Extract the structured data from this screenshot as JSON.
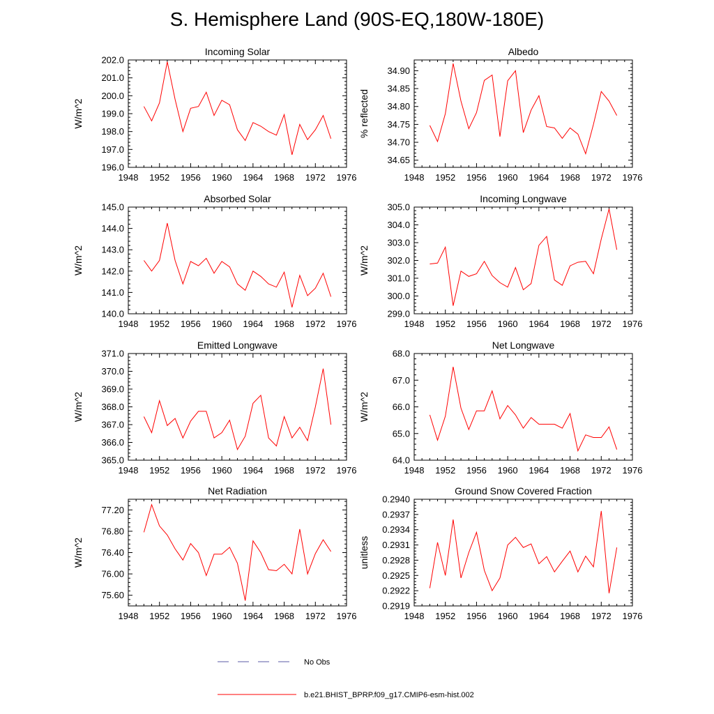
{
  "title": "S. Hemisphere Land (90S-EQ,180W-180E)",
  "legend": {
    "obs_label": "No Obs",
    "obs_color": "#5a5aa6",
    "model_label": "b.e21.BHIST_BPRP.f09_g17.CMIP6-esm-hist.002",
    "model_color": "#ff0000"
  },
  "chart_data": [
    {
      "type": "line",
      "title": "Incoming Solar",
      "ylabel": "W/m^2",
      "xlim": [
        1948,
        1976
      ],
      "xticks": [
        1948,
        1952,
        1956,
        1960,
        1964,
        1968,
        1972,
        1976
      ],
      "ylim": [
        196.0,
        202.0
      ],
      "yticks": [
        196.0,
        197.0,
        198.0,
        199.0,
        200.0,
        201.0,
        202.0
      ],
      "ytick_labels": [
        "196.0",
        "197.0",
        "198.0",
        "199.0",
        "200.0",
        "201.0",
        "202.0"
      ],
      "x": [
        1950,
        1951,
        1952,
        1953,
        1954,
        1955,
        1956,
        1957,
        1958,
        1959,
        1960,
        1961,
        1962,
        1963,
        1964,
        1965,
        1966,
        1967,
        1968,
        1969,
        1970,
        1971,
        1972,
        1973,
        1974
      ],
      "values": [
        199.4,
        198.6,
        199.6,
        201.9,
        199.8,
        198.0,
        199.3,
        199.4,
        200.2,
        198.9,
        199.75,
        199.5,
        198.1,
        197.5,
        198.5,
        198.3,
        198.0,
        197.8,
        198.95,
        196.7,
        198.4,
        197.55,
        198.1,
        198.9,
        197.6
      ]
    },
    {
      "type": "line",
      "title": "Albedo",
      "ylabel": "% reflected",
      "xlim": [
        1948,
        1976
      ],
      "xticks": [
        1948,
        1952,
        1956,
        1960,
        1964,
        1968,
        1972,
        1976
      ],
      "ylim": [
        34.63,
        34.93
      ],
      "yticks": [
        34.65,
        34.7,
        34.75,
        34.8,
        34.85,
        34.9
      ],
      "ytick_labels": [
        "34.65",
        "34.70",
        "34.75",
        "34.80",
        "34.85",
        "34.90"
      ],
      "x": [
        1950,
        1951,
        1952,
        1953,
        1954,
        1955,
        1956,
        1957,
        1958,
        1959,
        1960,
        1961,
        1962,
        1963,
        1964,
        1965,
        1966,
        1967,
        1968,
        1969,
        1970,
        1971,
        1972,
        1973,
        1974
      ],
      "values": [
        34.747,
        34.702,
        34.78,
        34.92,
        34.815,
        34.738,
        34.783,
        34.873,
        34.888,
        34.716,
        34.872,
        34.9,
        34.727,
        34.79,
        34.83,
        34.744,
        34.74,
        34.711,
        34.74,
        34.723,
        34.668,
        34.75,
        34.842,
        34.815,
        34.775
      ]
    },
    {
      "type": "line",
      "title": "Absorbed Solar",
      "ylabel": "W/m^2",
      "xlim": [
        1948,
        1976
      ],
      "xticks": [
        1948,
        1952,
        1956,
        1960,
        1964,
        1968,
        1972,
        1976
      ],
      "ylim": [
        140.0,
        145.0
      ],
      "yticks": [
        140.0,
        141.0,
        142.0,
        143.0,
        144.0,
        145.0
      ],
      "ytick_labels": [
        "140.0",
        "141.0",
        "142.0",
        "143.0",
        "144.0",
        "145.0"
      ],
      "x": [
        1950,
        1951,
        1952,
        1953,
        1954,
        1955,
        1956,
        1957,
        1958,
        1959,
        1960,
        1961,
        1962,
        1963,
        1964,
        1965,
        1966,
        1967,
        1968,
        1969,
        1970,
        1971,
        1972,
        1973,
        1974
      ],
      "values": [
        142.5,
        142.0,
        142.5,
        144.25,
        142.5,
        141.4,
        142.45,
        142.25,
        142.6,
        141.9,
        142.45,
        142.2,
        141.4,
        141.1,
        142.0,
        141.75,
        141.4,
        141.25,
        141.95,
        140.3,
        141.8,
        140.85,
        141.2,
        141.9,
        140.8
      ]
    },
    {
      "type": "line",
      "title": "Incoming Longwave",
      "ylabel": "W/m^2",
      "xlim": [
        1948,
        1976
      ],
      "xticks": [
        1948,
        1952,
        1956,
        1960,
        1964,
        1968,
        1972,
        1976
      ],
      "ylim": [
        299.0,
        305.0
      ],
      "yticks": [
        299.0,
        300.0,
        301.0,
        302.0,
        303.0,
        304.0,
        305.0
      ],
      "ytick_labels": [
        "299.0",
        "300.0",
        "301.0",
        "302.0",
        "303.0",
        "304.0",
        "305.0"
      ],
      "x": [
        1950,
        1951,
        1952,
        1953,
        1954,
        1955,
        1956,
        1957,
        1958,
        1959,
        1960,
        1961,
        1962,
        1963,
        1964,
        1965,
        1966,
        1967,
        1968,
        1969,
        1970,
        1971,
        1972,
        1973,
        1974
      ],
      "values": [
        301.8,
        301.85,
        302.75,
        299.45,
        301.4,
        301.1,
        301.25,
        301.95,
        301.15,
        300.75,
        300.5,
        301.6,
        300.35,
        300.7,
        302.85,
        303.35,
        300.9,
        300.6,
        301.7,
        301.9,
        301.95,
        301.25,
        303.2,
        304.9,
        302.6
      ]
    },
    {
      "type": "line",
      "title": "Emitted Longwave",
      "ylabel": "W/m^2",
      "xlim": [
        1948,
        1976
      ],
      "xticks": [
        1948,
        1952,
        1956,
        1960,
        1964,
        1968,
        1972,
        1976
      ],
      "ylim": [
        365.0,
        371.0
      ],
      "yticks": [
        365.0,
        366.0,
        367.0,
        368.0,
        369.0,
        370.0,
        371.0
      ],
      "ytick_labels": [
        "365.0",
        "366.0",
        "367.0",
        "368.0",
        "369.0",
        "370.0",
        "371.0"
      ],
      "x": [
        1950,
        1951,
        1952,
        1953,
        1954,
        1955,
        1956,
        1957,
        1958,
        1959,
        1960,
        1961,
        1962,
        1963,
        1964,
        1965,
        1966,
        1967,
        1968,
        1969,
        1970,
        1971,
        1972,
        1973,
        1974
      ],
      "values": [
        367.45,
        366.55,
        368.35,
        366.95,
        367.35,
        366.25,
        367.2,
        367.75,
        367.75,
        366.25,
        366.55,
        367.25,
        365.6,
        366.35,
        368.2,
        368.65,
        366.25,
        365.8,
        367.45,
        366.25,
        366.85,
        366.1,
        368.0,
        370.15,
        367.0
      ]
    },
    {
      "type": "line",
      "title": "Net Longwave",
      "ylabel": "W/m^2",
      "xlim": [
        1948,
        1976
      ],
      "xticks": [
        1948,
        1952,
        1956,
        1960,
        1964,
        1968,
        1972,
        1976
      ],
      "ylim": [
        64.0,
        68.0
      ],
      "yticks": [
        64.0,
        65.0,
        66.0,
        67.0,
        68.0
      ],
      "ytick_labels": [
        "64.0",
        "65.0",
        "66.0",
        "67.0",
        "68.0"
      ],
      "x": [
        1950,
        1951,
        1952,
        1953,
        1954,
        1955,
        1956,
        1957,
        1958,
        1959,
        1960,
        1961,
        1962,
        1963,
        1964,
        1965,
        1966,
        1967,
        1968,
        1969,
        1970,
        1971,
        1972,
        1973,
        1974
      ],
      "values": [
        65.7,
        64.75,
        65.65,
        67.5,
        65.95,
        65.15,
        65.85,
        65.85,
        66.6,
        65.55,
        66.05,
        65.7,
        65.2,
        65.6,
        65.35,
        65.35,
        65.35,
        65.2,
        65.75,
        64.35,
        64.95,
        64.85,
        64.85,
        65.25,
        64.4
      ]
    },
    {
      "type": "line",
      "title": "Net Radiation",
      "ylabel": "W/m^2",
      "xlim": [
        1948,
        1976
      ],
      "xticks": [
        1948,
        1952,
        1956,
        1960,
        1964,
        1968,
        1972,
        1976
      ],
      "ylim": [
        75.4,
        77.4
      ],
      "yticks": [
        75.6,
        76.0,
        76.4,
        76.8,
        77.2
      ],
      "ytick_labels": [
        "75.60",
        "76.00",
        "76.40",
        "76.80",
        "77.20"
      ],
      "x": [
        1950,
        1951,
        1952,
        1953,
        1954,
        1955,
        1956,
        1957,
        1958,
        1959,
        1960,
        1961,
        1962,
        1963,
        1964,
        1965,
        1966,
        1967,
        1968,
        1969,
        1970,
        1971,
        1972,
        1973,
        1974
      ],
      "values": [
        76.78,
        77.3,
        76.9,
        76.73,
        76.47,
        76.26,
        76.57,
        76.4,
        75.97,
        76.37,
        76.37,
        76.5,
        76.2,
        75.5,
        76.62,
        76.4,
        76.08,
        76.06,
        76.18,
        76.0,
        76.84,
        76.0,
        76.38,
        76.64,
        76.42
      ]
    },
    {
      "type": "line",
      "title": "Ground Snow Covered Fraction",
      "ylabel": "unitless",
      "xlim": [
        1948,
        1976
      ],
      "xticks": [
        1948,
        1952,
        1956,
        1960,
        1964,
        1968,
        1972,
        1976
      ],
      "ylim": [
        0.2919,
        0.294
      ],
      "yticks": [
        0.2919,
        0.2922,
        0.2925,
        0.2928,
        0.2931,
        0.2934,
        0.2937,
        0.294
      ],
      "ytick_labels": [
        "0.2919",
        "0.2922",
        "0.2925",
        "0.2928",
        "0.2931",
        "0.2934",
        "0.2937",
        "0.2940"
      ],
      "x": [
        1950,
        1951,
        1952,
        1953,
        1954,
        1955,
        1956,
        1957,
        1958,
        1959,
        1960,
        1961,
        1962,
        1963,
        1964,
        1965,
        1966,
        1967,
        1968,
        1969,
        1970,
        1971,
        1972,
        1973,
        1974
      ],
      "values": [
        0.29225,
        0.29315,
        0.2925,
        0.2936,
        0.29245,
        0.29295,
        0.29335,
        0.2926,
        0.2922,
        0.29245,
        0.2931,
        0.29325,
        0.29305,
        0.29312,
        0.29273,
        0.29287,
        0.29257,
        0.29278,
        0.29298,
        0.29257,
        0.29288,
        0.29267,
        0.29377,
        0.29215,
        0.29305
      ]
    }
  ]
}
